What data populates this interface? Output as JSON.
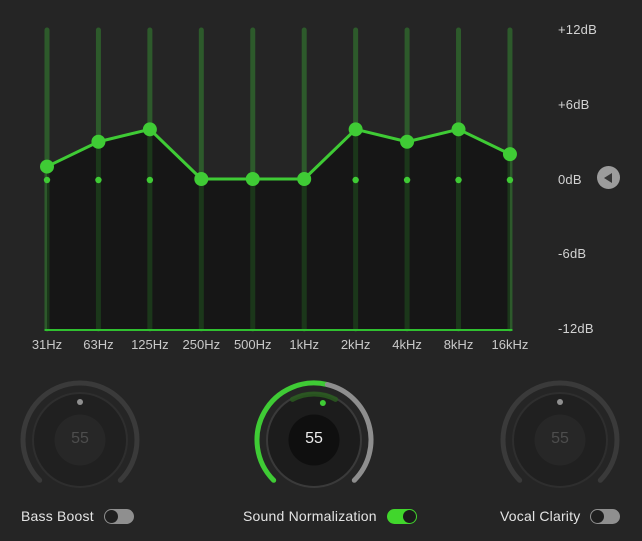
{
  "colors": {
    "background": "#252525",
    "accent_green": "#3fcb35",
    "band_line_green": "#2d5a2b",
    "baseline_green": "#30c030",
    "under_curve_fill": "rgba(0,0,0,0.38)",
    "toggle_on_green": "#41d62c",
    "toggle_off_gray": "#8f8f8f",
    "knob_arc_gray": "#8e8e8e",
    "knob_arc_disabled": "#3a3a3a"
  },
  "chart_data": {
    "type": "line",
    "categories": [
      "31Hz",
      "63Hz",
      "125Hz",
      "250Hz",
      "500Hz",
      "1kHz",
      "2kHz",
      "4kHz",
      "8kHz",
      "16kHz"
    ],
    "values_db": [
      1,
      3,
      4,
      0,
      0,
      0,
      4,
      3,
      4,
      2
    ],
    "y_ticks": [
      {
        "label": "+12dB",
        "db": 12
      },
      {
        "label": "+6dB",
        "db": 6
      },
      {
        "label": "0dB",
        "db": 0
      },
      {
        "label": "-6dB",
        "db": -6
      },
      {
        "label": "-12dB",
        "db": -12
      }
    ],
    "ylim": [
      -12,
      12
    ],
    "grid": "vertical-band-sliders",
    "legend": "none"
  },
  "eq": {
    "reset_button_icon": "arrow-left-icon"
  },
  "controls": [
    {
      "id": "bass-boost",
      "label": "Bass Boost",
      "knob_value": 55,
      "enabled": false
    },
    {
      "id": "sound-normalization",
      "label": "Sound Normalization",
      "knob_value": 55,
      "enabled": true
    },
    {
      "id": "vocal-clarity",
      "label": "Vocal Clarity",
      "knob_value": 55,
      "enabled": false
    }
  ]
}
